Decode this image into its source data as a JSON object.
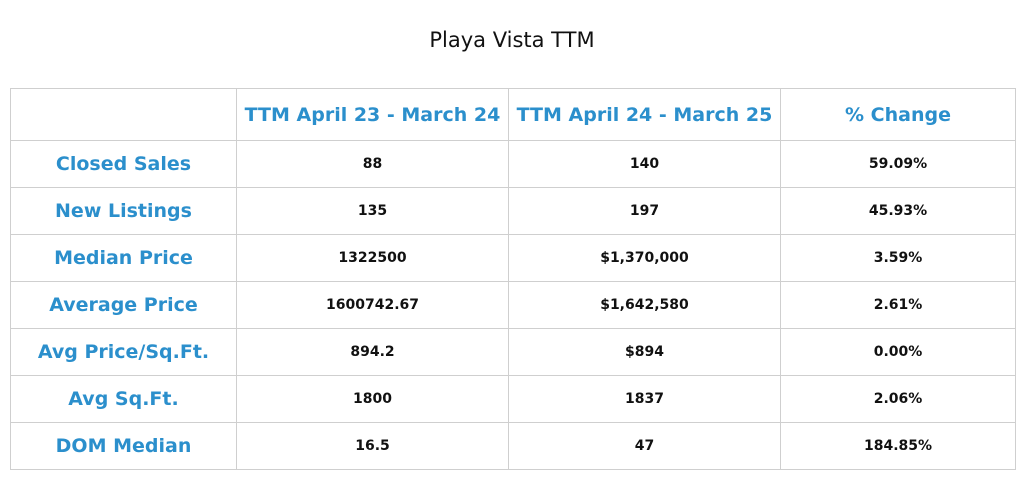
{
  "title": "Playa Vista TTM",
  "table": {
    "headers": [
      "",
      "TTM April 23 - March 24",
      "TTM April 24 - March 25",
      "% Change"
    ],
    "rows": [
      {
        "label": "Closed Sales",
        "prev": "88",
        "curr": "140",
        "change": "59.09%"
      },
      {
        "label": "New Listings",
        "prev": "135",
        "curr": "197",
        "change": "45.93%"
      },
      {
        "label": "Median Price",
        "prev": "1322500",
        "curr": "$1,370,000",
        "change": "3.59%"
      },
      {
        "label": "Average Price",
        "prev": "1600742.67",
        "curr": "$1,642,580",
        "change": "2.61%"
      },
      {
        "label": "Avg Price/Sq.Ft.",
        "prev": "894.2",
        "curr": "$894",
        "change": "0.00%"
      },
      {
        "label": "Avg Sq.Ft.",
        "prev": "1800",
        "curr": "1837",
        "change": "2.06%"
      },
      {
        "label": "DOM Median",
        "prev": "16.5",
        "curr": "47",
        "change": "184.85%"
      }
    ]
  },
  "colors": {
    "accent": "#2b8fcc",
    "text": "#111111",
    "border": "#cfcfcf"
  }
}
